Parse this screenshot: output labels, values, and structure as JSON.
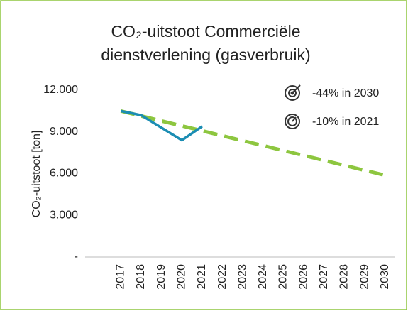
{
  "chart_data": {
    "type": "line",
    "title": "CO₂-uitstoot Commerciële dienstverlening (gasverbruik)",
    "y_label": "CO₂-uitstoot [ton]",
    "categories": [
      "2017",
      "2018",
      "2019",
      "2020",
      "2021",
      "2022",
      "2023",
      "2024",
      "2025",
      "2026",
      "2027",
      "2028",
      "2029",
      "2030"
    ],
    "series": [
      {
        "color": "#1b8db3",
        "dashed": false,
        "values": [
          10500,
          10200,
          9300,
          8400,
          9400,
          null,
          null,
          null,
          null,
          null,
          null,
          null,
          null,
          null
        ]
      },
      {
        "color": "#8dc63f",
        "dashed": true,
        "values": [
          10500,
          10145,
          9789,
          9434,
          9078,
          8723,
          8368,
          8012,
          7657,
          7302,
          6946,
          6591,
          6235,
          5880
        ]
      }
    ],
    "ylim": [
      0,
      12000
    ],
    "yticks": [
      {
        "value": 0,
        "label": "-"
      },
      {
        "value": 3000,
        "label": "3.000"
      },
      {
        "value": 6000,
        "label": "6.000"
      },
      {
        "value": 9000,
        "label": "9.000"
      },
      {
        "value": 12000,
        "label": "12.000"
      }
    ],
    "annotations": [
      "-44% in 2030",
      "-10% in 2021"
    ]
  }
}
